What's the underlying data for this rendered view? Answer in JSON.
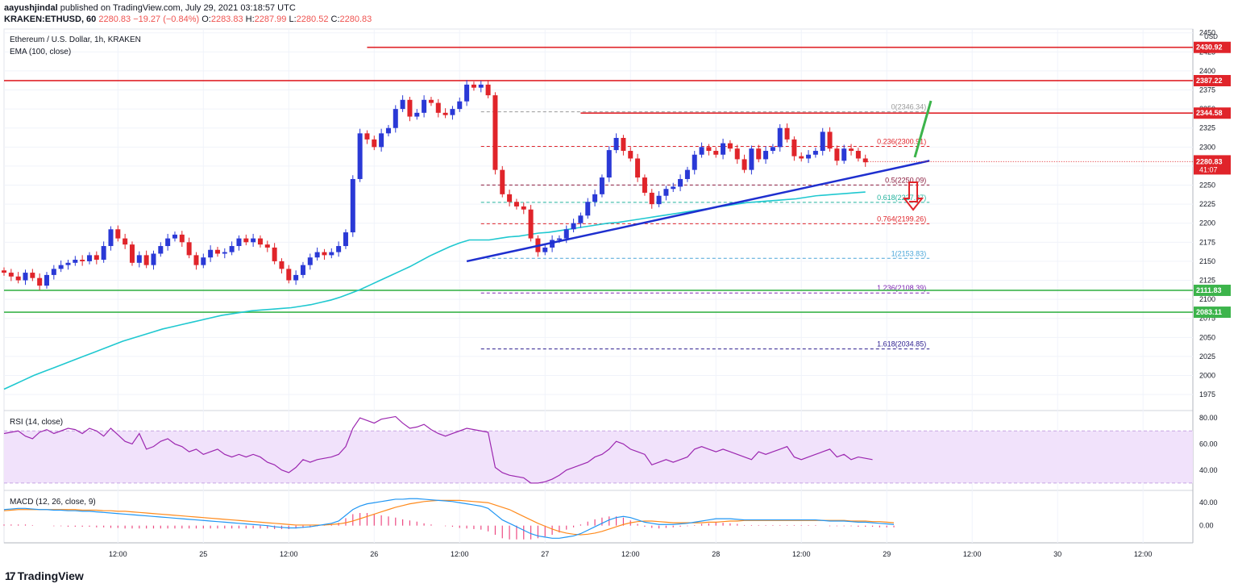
{
  "header": {
    "publisher": "aayushjindal",
    "published_text": "published on TradingView.com, July 29, 2021 03:18:57 UTC",
    "symbol": "KRAKEN:ETHUSD, 60",
    "last": "2280.83",
    "change": "−19.27 (−0.84%)",
    "o_label": "O:",
    "o": "2283.83",
    "h_label": "H:",
    "h": "2287.99",
    "l_label": "L:",
    "l": "2280.52",
    "c_label": "C:",
    "c": "2280.83"
  },
  "brand": {
    "icon": "17",
    "name": "TradingView"
  },
  "colors": {
    "up": "#2a39d6",
    "down": "#e0242a",
    "ema": "#1fc8d0",
    "red_line": "#e0242a",
    "green_line": "#3cb44b",
    "rsi": "#9c27b0",
    "rsi_band": "#f1e2fb",
    "macd": "#2196f3",
    "signal": "#ff8a1c",
    "trend": "#1e2fcf"
  },
  "chart_data": [
    {
      "type": "candlestick",
      "title": "Ethereum / U.S. Dollar, 1h, KRAKEN",
      "indicator_label": "EMA (100, close)",
      "currency": "USD",
      "ylim": [
        1955,
        2455
      ],
      "y_ticks": [
        1975,
        2000,
        2025,
        2050,
        2075,
        2100,
        2125,
        2150,
        2175,
        2200,
        2225,
        2250,
        2275,
        2300,
        2325,
        2350,
        2375,
        2400,
        2425,
        2450
      ],
      "x_ticks": [
        {
          "label": "12:00",
          "t": 12
        },
        {
          "label": "25",
          "t": 24
        },
        {
          "label": "12:00",
          "t": 36
        },
        {
          "label": "26",
          "t": 48
        },
        {
          "label": "12:00",
          "t": 60
        },
        {
          "label": "27",
          "t": 72
        },
        {
          "label": "12:00",
          "t": 84
        },
        {
          "label": "28",
          "t": 96
        },
        {
          "label": "12:00",
          "t": 108
        },
        {
          "label": "29",
          "t": 120
        },
        {
          "label": "12:00",
          "t": 132
        },
        {
          "label": "30",
          "t": 144
        },
        {
          "label": "12:00",
          "t": 156
        }
      ],
      "t_range": [
        -4,
        163
      ],
      "close_series": [
        2135,
        2130,
        2125,
        2135,
        2128,
        2118,
        2132,
        2140,
        2145,
        2148,
        2152,
        2150,
        2158,
        2152,
        2170,
        2192,
        2180,
        2172,
        2148,
        2158,
        2145,
        2160,
        2170,
        2180,
        2185,
        2175,
        2158,
        2145,
        2155,
        2165,
        2160,
        2162,
        2170,
        2180,
        2175,
        2180,
        2172,
        2168,
        2150,
        2140,
        2125,
        2132,
        2145,
        2155,
        2162,
        2158,
        2162,
        2170,
        2188,
        2258,
        2318,
        2310,
        2300,
        2318,
        2325,
        2350,
        2362,
        2340,
        2345,
        2362,
        2358,
        2345,
        2342,
        2350,
        2360,
        2382,
        2378,
        2382,
        2368,
        2270,
        2238,
        2228,
        2222,
        2218,
        2180,
        2162,
        2168,
        2178,
        2180,
        2192,
        2200,
        2210,
        2228,
        2238,
        2260,
        2296,
        2312,
        2295,
        2285,
        2260,
        2240,
        2225,
        2236,
        2245,
        2248,
        2258,
        2270,
        2290,
        2300,
        2295,
        2290,
        2305,
        2298,
        2284,
        2270,
        2298,
        2284,
        2295,
        2300,
        2325,
        2310,
        2288,
        2285,
        2290,
        2295,
        2320,
        2298,
        2282,
        2298,
        2295,
        2285,
        2280
      ],
      "ema_series": [
        1982,
        1988,
        1994,
        2000,
        2005,
        2010,
        2015,
        2020,
        2025,
        2030,
        2035,
        2040,
        2045,
        2049,
        2053,
        2057,
        2061,
        2064,
        2067,
        2070,
        2073,
        2076,
        2079,
        2081,
        2083,
        2085,
        2086,
        2087,
        2088,
        2089,
        2091,
        2093,
        2096,
        2099,
        2103,
        2108,
        2113,
        2119,
        2125,
        2131,
        2137,
        2143,
        2150,
        2157,
        2163,
        2169,
        2174,
        2178,
        2178,
        2178,
        2180,
        2182,
        2183,
        2185,
        2187,
        2188,
        2190,
        2192,
        2194,
        2196,
        2198,
        2200,
        2201,
        2203,
        2205,
        2207,
        2209,
        2211,
        2213,
        2215,
        2217,
        2219,
        2221,
        2223,
        2225,
        2227,
        2228,
        2229,
        2230,
        2231,
        2232,
        2234,
        2236,
        2237,
        2238,
        2239,
        2240,
        2241
      ],
      "ema_start_t": -4,
      "h_levels": [
        {
          "value": 2430.92,
          "label": "2430.92",
          "color": "#e0242a",
          "t_from": 47
        },
        {
          "value": 2387.22,
          "label": "2387.22",
          "color": "#e0242a",
          "t_from": -4
        },
        {
          "value": 2344.58,
          "label": "2344.58",
          "color": "#e0242a",
          "t_from": 77
        },
        {
          "value": 2111.83,
          "label": "2111.83",
          "color": "#3cb44b",
          "t_from": -4
        },
        {
          "value": 2083.11,
          "label": "2083.11",
          "color": "#3cb44b",
          "t_from": -4
        }
      ],
      "last_price": {
        "value": 2280.83,
        "label": "2280.83",
        "countdown": "41:07"
      },
      "fib_levels": [
        {
          "ratio": "0",
          "value": 2346.34,
          "color": "#999999"
        },
        {
          "ratio": "0.236",
          "value": 2300.91,
          "color": "#e0242a"
        },
        {
          "ratio": "0.5",
          "value": 2250.09,
          "color": "#8a1c3e"
        },
        {
          "ratio": "0.618",
          "value": 2227.37,
          "color": "#22b29d"
        },
        {
          "ratio": "0.764",
          "value": 2199.26,
          "color": "#e0242a"
        },
        {
          "ratio": "1",
          "value": 2153.83,
          "color": "#4aa6d8"
        },
        {
          "ratio": "1.236",
          "value": 2108.39,
          "color": "#7b22b2"
        },
        {
          "ratio": "1.618",
          "value": 2034.85,
          "color": "#2a1c8e"
        }
      ],
      "fib_t_range": [
        63,
        126
      ],
      "trendline": {
        "t0": 61,
        "v0": 2150,
        "t1": 126,
        "v1": 2282
      },
      "annotations": {
        "green_arrow_up": true,
        "red_arrow_down": true
      }
    },
    {
      "type": "line",
      "indicator_label": "RSI (14, close)",
      "ylim": [
        25,
        85
      ],
      "y_ticks": [
        40.0,
        60.0,
        80.0
      ],
      "band": [
        30,
        70
      ],
      "series": [
        68,
        69,
        70,
        66,
        64,
        69,
        71,
        68,
        70,
        72,
        71,
        68,
        72,
        70,
        66,
        72,
        67,
        62,
        60,
        68,
        56,
        58,
        62,
        64,
        60,
        58,
        54,
        56,
        52,
        54,
        56,
        52,
        50,
        52,
        50,
        52,
        50,
        46,
        44,
        40,
        38,
        42,
        48,
        46,
        48,
        49,
        50,
        52,
        58,
        72,
        80,
        78,
        76,
        79,
        80,
        81,
        76,
        72,
        73,
        75,
        71,
        68,
        66,
        68,
        70,
        72,
        71,
        70,
        69,
        42,
        38,
        36,
        35,
        34,
        30,
        30,
        31,
        33,
        36,
        40,
        42,
        44,
        46,
        50,
        52,
        56,
        62,
        60,
        56,
        54,
        52,
        44,
        46,
        48,
        46,
        48,
        50,
        56,
        58,
        56,
        54,
        56,
        54,
        52,
        50,
        48,
        54,
        52,
        54,
        56,
        58,
        50,
        48,
        50,
        52,
        54,
        56,
        50,
        52,
        48,
        50,
        49,
        48
      ],
      "t_start": -4
    },
    {
      "type": "line",
      "indicator_label": "MACD (12, 26, close, 9)",
      "ylim": [
        -30,
        60
      ],
      "y_ticks": [
        0.0,
        40.0
      ],
      "macd_series": [
        28,
        29,
        30,
        30,
        29,
        28,
        28,
        27,
        27,
        26,
        26,
        25,
        25,
        24,
        23,
        22,
        21,
        20,
        19,
        18,
        17,
        16,
        15,
        14,
        13,
        12,
        11,
        10,
        9,
        8,
        7,
        6,
        5,
        4,
        3,
        2,
        1,
        0,
        -2,
        -3,
        -4,
        -4,
        -3,
        -2,
        0,
        2,
        4,
        8,
        18,
        28,
        34,
        38,
        40,
        42,
        44,
        46,
        46,
        47,
        47,
        46,
        45,
        44,
        43,
        42,
        40,
        38,
        36,
        34,
        30,
        20,
        10,
        4,
        -2,
        -8,
        -14,
        -18,
        -20,
        -22,
        -22,
        -20,
        -18,
        -14,
        -8,
        -2,
        4,
        10,
        14,
        16,
        14,
        10,
        6,
        4,
        2,
        2,
        2,
        3,
        4,
        6,
        8,
        10,
        12,
        12,
        12,
        11,
        10,
        10,
        10,
        10,
        10,
        10,
        10,
        10,
        10,
        10,
        10,
        9,
        8,
        8,
        8,
        7,
        6,
        6,
        5,
        4,
        3,
        2
      ],
      "signal_series": [
        26,
        27,
        28,
        28,
        28,
        28,
        28,
        28,
        28,
        28,
        28,
        27,
        27,
        27,
        26,
        26,
        25,
        25,
        24,
        23,
        22,
        21,
        20,
        19,
        18,
        17,
        16,
        15,
        14,
        13,
        12,
        11,
        10,
        9,
        8,
        7,
        6,
        5,
        4,
        3,
        2,
        1,
        1,
        1,
        1,
        1,
        2,
        3,
        5,
        8,
        12,
        16,
        20,
        24,
        28,
        32,
        35,
        38,
        40,
        42,
        43,
        44,
        44,
        44,
        44,
        43,
        42,
        41,
        40,
        36,
        32,
        28,
        22,
        16,
        10,
        4,
        -1,
        -6,
        -10,
        -13,
        -15,
        -16,
        -15,
        -13,
        -10,
        -6,
        -2,
        2,
        5,
        7,
        8,
        8,
        7,
        6,
        5,
        5,
        5,
        5,
        5,
        6,
        6,
        7,
        8,
        8,
        9,
        9,
        9,
        9,
        9,
        9,
        9,
        9,
        9,
        9,
        9,
        9,
        9,
        9,
        9,
        8,
        8,
        8,
        7,
        7,
        6,
        5
      ],
      "t_start": -4
    }
  ]
}
